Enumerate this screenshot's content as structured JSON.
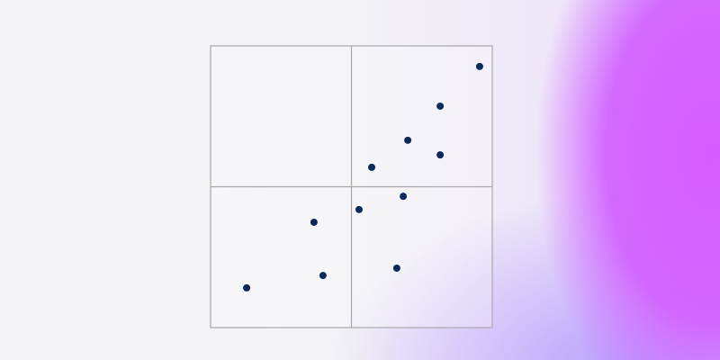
{
  "chart_data": {
    "type": "scatter",
    "x": [
      95.5,
      81.5,
      70.0,
      81.5,
      57.2,
      68.4,
      52.7,
      36.7,
      66.1,
      39.9,
      12.8
    ],
    "values": [
      92.7,
      78.6,
      66.5,
      61.3,
      56.9,
      46.6,
      41.9,
      37.4,
      21.1,
      18.5,
      14.1
    ],
    "color": "#0b2a5b",
    "xlim": [
      0,
      100
    ],
    "ylim": [
      0,
      100
    ]
  }
}
